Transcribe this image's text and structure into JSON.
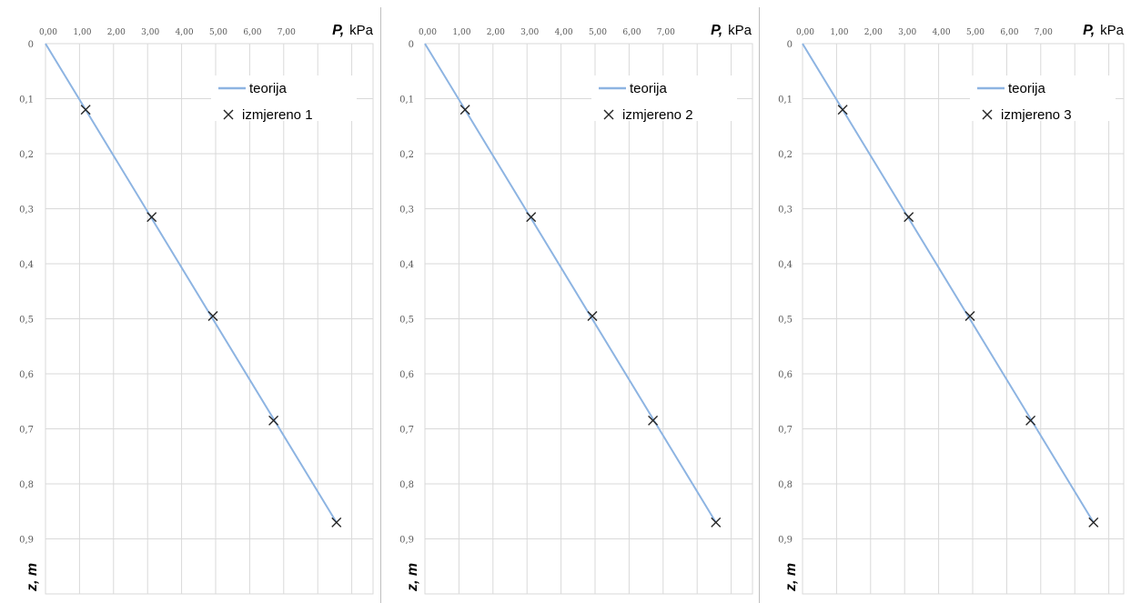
{
  "colors": {
    "theory_line": "#8db4e2",
    "marker": "#262626",
    "grid": "#d9d9d9",
    "divider": "#bfbfbf"
  },
  "chart_data": [
    {
      "type": "line",
      "x_axis": {
        "label_symbol": "P,",
        "label_unit": "kPa",
        "ticks": [
          "0,00",
          "1,00",
          "2,00",
          "3,00",
          "4,00",
          "5,00",
          "6,00",
          "7,00"
        ],
        "range": [
          0,
          8.5
        ],
        "position": "top"
      },
      "y_axis": {
        "label": "z, m",
        "ticks": [
          "0",
          "0,1",
          "0,2",
          "0,3",
          "0,4",
          "0,5",
          "0,6",
          "0,7",
          "0,8",
          "0,9"
        ],
        "range": [
          0,
          1.0
        ],
        "inverted": true
      },
      "grid": true,
      "legend_position": "top-right",
      "series": [
        {
          "name": "teorija",
          "style": "line",
          "points": [
            [
              0,
              0
            ],
            [
              8.55,
              0.87
            ]
          ]
        },
        {
          "name": "izmjereno 1",
          "style": "marker-x",
          "points": [
            [
              1.18,
              0.12
            ],
            [
              3.12,
              0.315
            ],
            [
              4.92,
              0.495
            ],
            [
              6.7,
              0.685
            ],
            [
              8.55,
              0.87
            ]
          ]
        }
      ]
    },
    {
      "type": "line",
      "x_axis": {
        "label_symbol": "P,",
        "label_unit": "kPa",
        "ticks": [
          "0,00",
          "1,00",
          "2,00",
          "3,00",
          "4,00",
          "5,00",
          "6,00",
          "7,00"
        ],
        "range": [
          0,
          8.5
        ],
        "position": "top"
      },
      "y_axis": {
        "label": "z, m",
        "ticks": [
          "0",
          "0,1",
          "0,2",
          "0,3",
          "0,4",
          "0,5",
          "0,6",
          "0,7",
          "0,8",
          "0,9"
        ],
        "range": [
          0,
          1.0
        ],
        "inverted": true
      },
      "grid": true,
      "legend_position": "top-right",
      "series": [
        {
          "name": "teorija",
          "style": "line",
          "points": [
            [
              0,
              0
            ],
            [
              8.55,
              0.87
            ]
          ]
        },
        {
          "name": "izmjereno 2",
          "style": "marker-x",
          "points": [
            [
              1.18,
              0.12
            ],
            [
              3.12,
              0.315
            ],
            [
              4.92,
              0.495
            ],
            [
              6.7,
              0.685
            ],
            [
              8.55,
              0.87
            ]
          ]
        }
      ]
    },
    {
      "type": "line",
      "x_axis": {
        "label_symbol": "P,",
        "label_unit": "kPa",
        "ticks": [
          "0,00",
          "1,00",
          "2,00",
          "3,00",
          "4,00",
          "5,00",
          "6,00",
          "7,00"
        ],
        "range": [
          0,
          8.5
        ],
        "position": "top"
      },
      "y_axis": {
        "label": "z, m",
        "ticks": [
          "0",
          "0,1",
          "0,2",
          "0,3",
          "0,4",
          "0,5",
          "0,6",
          "0,7",
          "0,8",
          "0,9"
        ],
        "range": [
          0,
          1.0
        ],
        "inverted": true
      },
      "grid": true,
      "legend_position": "top-right",
      "series": [
        {
          "name": "teorija",
          "style": "line",
          "points": [
            [
              0,
              0
            ],
            [
              8.55,
              0.87
            ]
          ]
        },
        {
          "name": "izmjereno 3",
          "style": "marker-x",
          "points": [
            [
              1.18,
              0.12
            ],
            [
              3.12,
              0.315
            ],
            [
              4.92,
              0.495
            ],
            [
              6.7,
              0.685
            ],
            [
              8.55,
              0.87
            ]
          ]
        }
      ]
    }
  ]
}
